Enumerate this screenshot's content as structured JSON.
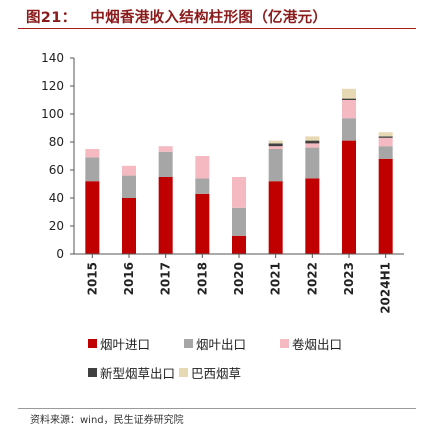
{
  "figure": {
    "label": "图21：",
    "title": "中烟香港收入结构柱形图（亿港元）"
  },
  "source": "资料来源：wind，民生证券研究院",
  "chart_data": {
    "type": "bar",
    "stacked": true,
    "categories": [
      "2015",
      "2016",
      "2017",
      "2018",
      "2020",
      "2021",
      "2022",
      "2023",
      "2024H1"
    ],
    "ylim": [
      0,
      140
    ],
    "yticks": [
      0,
      20,
      40,
      60,
      80,
      100,
      120,
      140
    ],
    "grid": false,
    "legend_position": "bottom",
    "series": [
      {
        "name": "烟叶进口",
        "color": "#c00000",
        "values": [
          52,
          40,
          55,
          43,
          13,
          52,
          54,
          81,
          68
        ]
      },
      {
        "name": "烟叶出口",
        "color": "#a6a6a6",
        "values": [
          17,
          16,
          18,
          11,
          20,
          23,
          22,
          16,
          9
        ]
      },
      {
        "name": "卷烟出口",
        "color": "#f4b9c1",
        "values": [
          6,
          7,
          4,
          16,
          22,
          2,
          3,
          13,
          6
        ]
      },
      {
        "name": "新型烟草出口",
        "color": "#404040",
        "values": [
          0,
          0,
          0,
          0,
          0,
          2,
          2,
          1,
          1
        ]
      },
      {
        "name": "巴西烟草",
        "color": "#e8d9b5",
        "values": [
          0,
          0,
          0,
          0,
          0,
          2,
          3,
          7,
          3
        ]
      }
    ]
  }
}
